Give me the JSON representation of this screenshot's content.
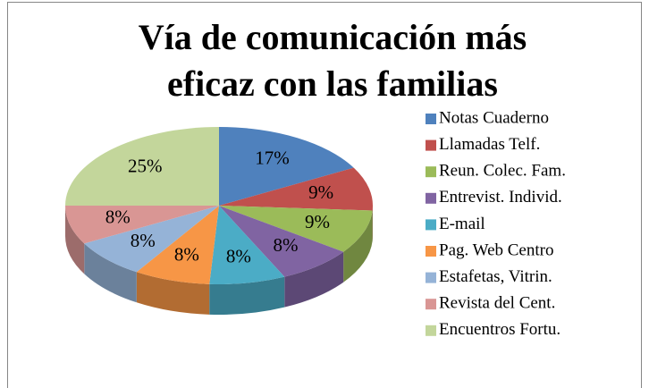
{
  "chart_data": {
    "type": "pie",
    "title": "Vía de comunicación más eficaz con las familias",
    "categories": [
      "Notas Cuaderno",
      "Llamadas Telf.",
      "Reun. Colec. Fam.",
      "Entrevist. Individ.",
      "E-mail",
      "Pag. Web Centro",
      "Estafetas, Vitrin.",
      "Revista del Cent.",
      "Encuentros Fortu."
    ],
    "values": [
      17,
      9,
      9,
      8,
      8,
      8,
      8,
      8,
      25
    ],
    "value_labels": [
      "17%",
      "9%",
      "9%",
      "8%",
      "8%",
      "8%",
      "8%",
      "8%",
      "25%"
    ],
    "colors": [
      "#4f81bd",
      "#c0504d",
      "#9bbb59",
      "#8064a2",
      "#4bacc6",
      "#f79646",
      "#95b3d7",
      "#d99694",
      "#c3d69b"
    ],
    "legend": "right"
  }
}
